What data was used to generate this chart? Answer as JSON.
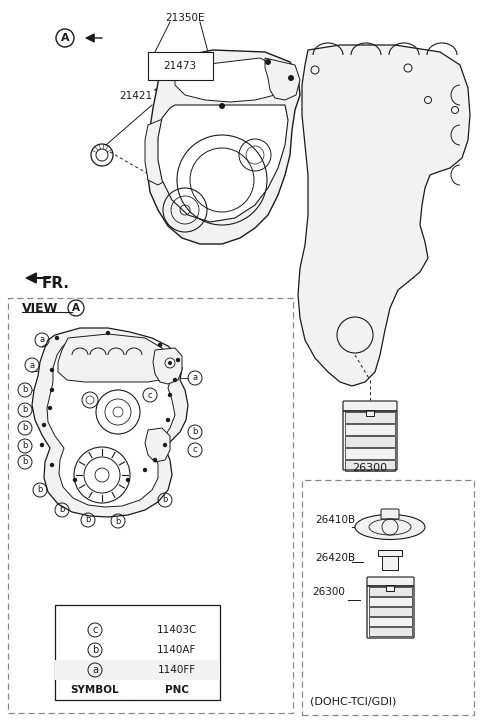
{
  "bg_color": "#ffffff",
  "line_color": "#1a1a1a",
  "gray_fill": "#e8e8e8",
  "light_gray": "#f2f2f2",
  "dashed_color": "#888888",
  "table_data": {
    "headers": [
      "SYMBOL",
      "PNC"
    ],
    "rows": [
      [
        "a",
        "1140FF"
      ],
      [
        "b",
        "1140AF"
      ],
      [
        "c",
        "11403C"
      ]
    ]
  },
  "fr_label": "FR.",
  "dohc_label": "(DOHC-TCI/GDI)",
  "view_label": "VIEW"
}
